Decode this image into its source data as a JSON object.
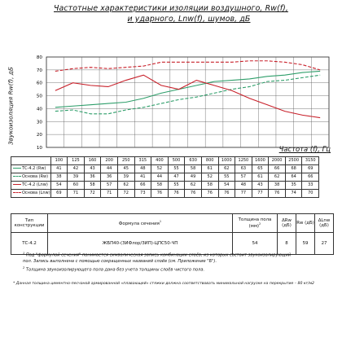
{
  "title": {
    "line1": "Частотные характеристики изоляции воздушного, Rw(f),",
    "line2": "и ударного, Lnw(f), шумов, дБ"
  },
  "colors": {
    "tc_rw": "#2e9e6a",
    "base_rw": "#2e9e6a",
    "tc_lnw": "#c8202a",
    "base_lnw": "#c8202a",
    "grid": "#555555",
    "border": "#222222"
  },
  "chart_data": {
    "type": "line",
    "x": [
      100,
      125,
      160,
      200,
      250,
      315,
      400,
      500,
      630,
      800,
      1000,
      1250,
      1600,
      2000,
      2500,
      3150
    ],
    "ylabel": "Звукоизоляция Rw(f), дБ",
    "xlabel": "Частота (f), Гц",
    "ylim": [
      10,
      80
    ],
    "yticks": [
      10,
      20,
      30,
      40,
      50,
      60,
      70,
      80
    ],
    "grid": true,
    "series": [
      {
        "name": "ТС-4.2 (Rw)",
        "style": "solid",
        "color": "#2e9e6a",
        "values": [
          41,
          42,
          43,
          44,
          45,
          48,
          52,
          55,
          58,
          61,
          62,
          63,
          65,
          66,
          68,
          69
        ]
      },
      {
        "name": "Основа (Rw)",
        "style": "dashed",
        "color": "#2e9e6a",
        "values": [
          38,
          39,
          36,
          36,
          39,
          41,
          44,
          47,
          49,
          52,
          55,
          57,
          61,
          62,
          64,
          66
        ]
      },
      {
        "name": "ТС-4.2 (Lnw)",
        "style": "solid",
        "color": "#c8202a",
        "values": [
          54,
          60,
          58,
          57,
          62,
          66,
          58,
          55,
          62,
          58,
          54,
          48,
          43,
          38,
          35,
          33
        ]
      },
      {
        "name": "Основа (Lnw)",
        "style": "dashed",
        "color": "#c8202a",
        "values": [
          69,
          71,
          72,
          71,
          72,
          73,
          76,
          76,
          76,
          76,
          76,
          77,
          77,
          76,
          74,
          70
        ]
      }
    ]
  },
  "table": {
    "h_type": "Тип конструкции",
    "h_formula": "Формула сечения",
    "h_thick": "Толщина пола (мм)",
    "h_drw": "ΔRw (дБ)",
    "h_rw": "Rw (дБ)",
    "h_dlnw": "ΔLnw (дБ)",
    "r_type": "ТС-4.2",
    "r_formula": "ЖБП40-(ЗИФлор/ЗИП)-ЦПС50-ЧП",
    "r_thick": "54",
    "r_drw": "8",
    "r_rw": "59",
    "r_dlnw": "27",
    "sup1": "1",
    "sup2": "2"
  },
  "notes": {
    "n1a": "Под \"формулой сечения\" понимается символическая запись комбинации слоёв, из которых состоит звукоизолирующий",
    "n1b": "пол. Запись выполнена с помощью сокращенных названий слоёв (см. Приложение \"Б\").",
    "n2": "Толщина звукоизолирующего пола дана без учета толщины слоёв чистого пола.",
    "n3": "Данная толщина цементно-песчаной армированной «плавающей» стяжки должна соответствовать минимальной нагрузке на перекрытие – 80 кг/м2",
    "n1_mark": "1",
    "n2_mark": "2",
    "n3_mark": "*"
  }
}
